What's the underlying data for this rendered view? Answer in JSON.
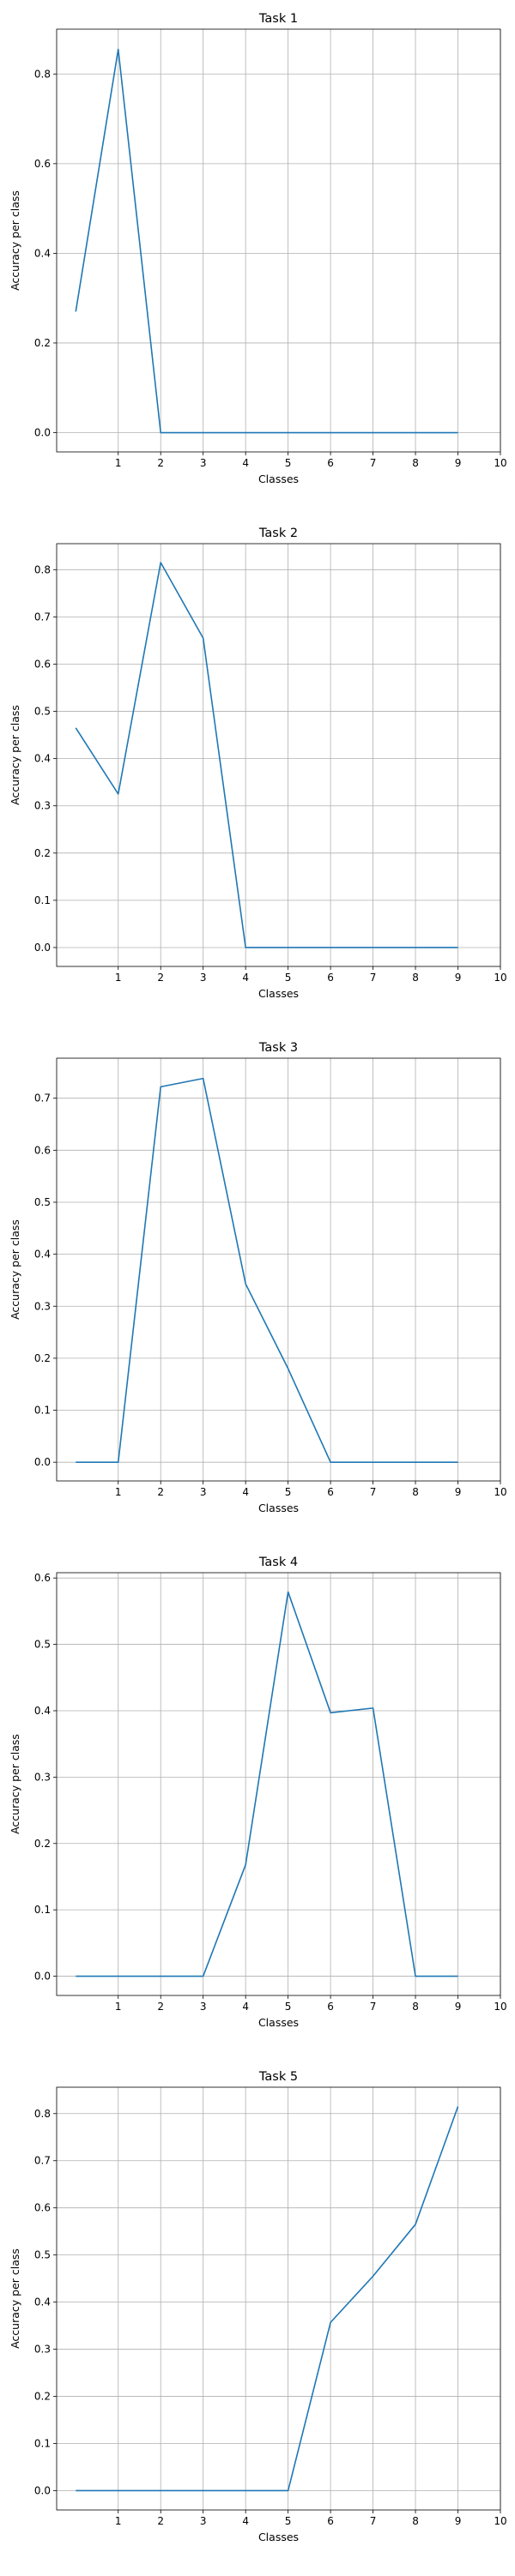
{
  "chart_data": [
    {
      "type": "line",
      "title": "Task 1",
      "xlabel": "Classes",
      "ylabel": "Accuracy per class",
      "x": [
        0,
        1,
        2,
        3,
        4,
        5,
        6,
        7,
        8,
        9
      ],
      "xticks": [
        "1",
        "2",
        "3",
        "4",
        "5",
        "6",
        "7",
        "8",
        "9",
        "10"
      ],
      "xlim": [
        -0.45,
        10
      ],
      "ylim": [
        -0.043,
        0.9
      ],
      "yticks": [
        "0.0",
        "0.2",
        "0.4",
        "0.6",
        "0.8"
      ],
      "grid": true,
      "color": "#1f77b4",
      "series": [
        {
          "values": [
            0.27,
            0.855,
            0.0,
            0.0,
            0.0,
            0.0,
            0.0,
            0.0,
            0.0,
            0.0
          ]
        }
      ]
    },
    {
      "type": "line",
      "title": "Task 2",
      "xlabel": "Classes",
      "ylabel": "Accuracy per class",
      "x": [
        0,
        1,
        2,
        3,
        4,
        5,
        6,
        7,
        8,
        9
      ],
      "xticks": [
        "1",
        "2",
        "3",
        "4",
        "5",
        "6",
        "7",
        "8",
        "9",
        "10"
      ],
      "xlim": [
        -0.45,
        10
      ],
      "ylim": [
        -0.04,
        0.855
      ],
      "yticks": [
        "0.0",
        "0.1",
        "0.2",
        "0.3",
        "0.4",
        "0.5",
        "0.6",
        "0.7",
        "0.8"
      ],
      "grid": true,
      "color": "#1f77b4",
      "series": [
        {
          "values": [
            0.465,
            0.325,
            0.815,
            0.655,
            0.0,
            0.0,
            0.0,
            0.0,
            0.0,
            0.0
          ]
        }
      ]
    },
    {
      "type": "line",
      "title": "Task 3",
      "xlabel": "Classes",
      "ylabel": "Accuracy per class",
      "x": [
        0,
        1,
        2,
        3,
        4,
        5,
        6,
        7,
        8,
        9
      ],
      "xticks": [
        "1",
        "2",
        "3",
        "4",
        "5",
        "6",
        "7",
        "8",
        "9",
        "10"
      ],
      "xlim": [
        -0.45,
        10
      ],
      "ylim": [
        -0.036,
        0.777
      ],
      "yticks": [
        "0.0",
        "0.1",
        "0.2",
        "0.3",
        "0.4",
        "0.5",
        "0.6",
        "0.7"
      ],
      "grid": true,
      "color": "#1f77b4",
      "series": [
        {
          "values": [
            0.0,
            0.0,
            0.722,
            0.738,
            0.343,
            0.18,
            0.0,
            0.0,
            0.0,
            0.0
          ]
        }
      ]
    },
    {
      "type": "line",
      "title": "Task 4",
      "xlabel": "Classes",
      "ylabel": "Accuracy per class",
      "x": [
        0,
        1,
        2,
        3,
        4,
        5,
        6,
        7,
        8,
        9
      ],
      "xticks": [
        "1",
        "2",
        "3",
        "4",
        "5",
        "6",
        "7",
        "8",
        "9",
        "10"
      ],
      "xlim": [
        -0.45,
        10
      ],
      "ylim": [
        -0.029,
        0.608
      ],
      "yticks": [
        "0.0",
        "0.1",
        "0.2",
        "0.3",
        "0.4",
        "0.5",
        "0.6"
      ],
      "grid": true,
      "color": "#1f77b4",
      "series": [
        {
          "values": [
            0.0,
            0.0,
            0.0,
            0.0,
            0.168,
            0.579,
            0.397,
            0.404,
            0.0,
            0.0
          ]
        }
      ]
    },
    {
      "type": "line",
      "title": "Task 5",
      "xlabel": "Classes",
      "ylabel": "Accuracy per class",
      "x": [
        0,
        1,
        2,
        3,
        4,
        5,
        6,
        7,
        8,
        9
      ],
      "xticks": [
        "1",
        "2",
        "3",
        "4",
        "5",
        "6",
        "7",
        "8",
        "9",
        "10"
      ],
      "xlim": [
        -0.45,
        10
      ],
      "ylim": [
        -0.041,
        0.856
      ],
      "yticks": [
        "0.0",
        "0.1",
        "0.2",
        "0.3",
        "0.4",
        "0.5",
        "0.6",
        "0.7",
        "0.8"
      ],
      "grid": true,
      "color": "#1f77b4",
      "series": [
        {
          "values": [
            0.0,
            0.0,
            0.0,
            0.0,
            0.0,
            0.0,
            0.357,
            0.455,
            0.565,
            0.815
          ]
        }
      ]
    }
  ]
}
